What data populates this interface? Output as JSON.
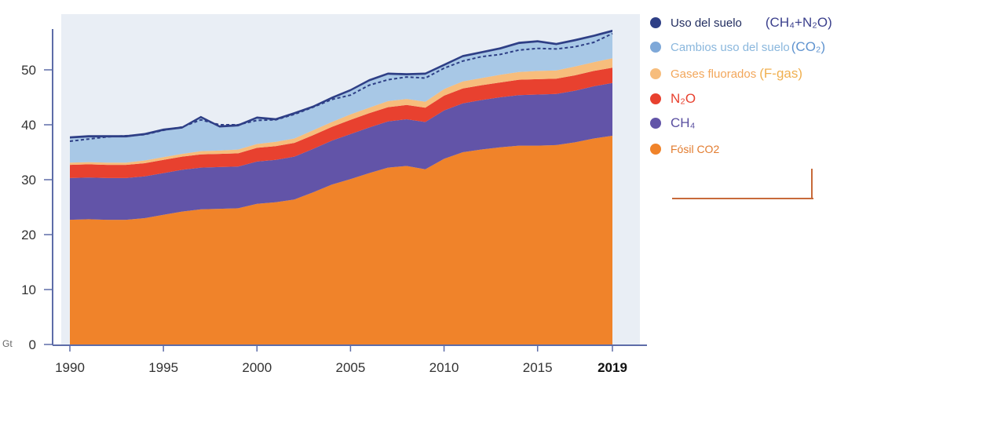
{
  "chart_data": {
    "type": "area",
    "stacked": true,
    "unit_label": "Gt",
    "x": [
      1990,
      1991,
      1992,
      1993,
      1994,
      1995,
      1996,
      1997,
      1998,
      1999,
      2000,
      2001,
      2002,
      2003,
      2004,
      2005,
      2006,
      2007,
      2008,
      2009,
      2010,
      2011,
      2012,
      2013,
      2014,
      2015,
      2016,
      2017,
      2018,
      2019
    ],
    "x_ticks": [
      "1990",
      "1995",
      "2000",
      "2005",
      "2010",
      "2015",
      "2019"
    ],
    "x_ticks_bold": [
      "2019"
    ],
    "y_ticks": [
      "0",
      "10",
      "20",
      "30",
      "40",
      "50"
    ],
    "xlim": [
      1990,
      2019
    ],
    "ylim": [
      0,
      58
    ],
    "grid": false,
    "legend_position": "right",
    "series": [
      {
        "name": "Fósil CO2",
        "color": "#f0832a",
        "values": [
          22.7,
          22.8,
          22.7,
          22.7,
          23.0,
          23.6,
          24.2,
          24.6,
          24.7,
          24.8,
          25.6,
          25.9,
          26.4,
          27.7,
          29.1,
          30.1,
          31.2,
          32.2,
          32.5,
          31.9,
          33.8,
          35.0,
          35.5,
          35.9,
          36.2,
          36.2,
          36.3,
          36.8,
          37.5,
          38.0
        ]
      },
      {
        "name": "CH₄",
        "color": "#6254a8",
        "values": [
          7.6,
          7.6,
          7.6,
          7.6,
          7.6,
          7.6,
          7.6,
          7.6,
          7.6,
          7.6,
          7.7,
          7.7,
          7.8,
          7.9,
          8.0,
          8.2,
          8.3,
          8.4,
          8.5,
          8.6,
          8.8,
          8.9,
          9.0,
          9.1,
          9.2,
          9.3,
          9.3,
          9.4,
          9.5,
          9.6
        ]
      },
      {
        "name": "N₂O",
        "color": "#e8412f",
        "values": [
          2.4,
          2.4,
          2.4,
          2.4,
          2.4,
          2.4,
          2.4,
          2.4,
          2.4,
          2.4,
          2.5,
          2.5,
          2.5,
          2.5,
          2.5,
          2.6,
          2.6,
          2.6,
          2.6,
          2.6,
          2.7,
          2.7,
          2.7,
          2.7,
          2.8,
          2.8,
          2.8,
          2.8,
          2.8,
          2.8
        ]
      },
      {
        "name": "Gases fluorados (F-gas)",
        "color": "#f7bd7c",
        "values": [
          0.4,
          0.4,
          0.4,
          0.4,
          0.5,
          0.5,
          0.5,
          0.6,
          0.6,
          0.7,
          0.7,
          0.8,
          0.8,
          0.9,
          0.9,
          1.0,
          1.0,
          1.1,
          1.1,
          1.1,
          1.2,
          1.3,
          1.3,
          1.4,
          1.4,
          1.5,
          1.5,
          1.6,
          1.6,
          1.7
        ]
      },
      {
        "name": "Cambios uso del suelo (CO₂)",
        "color": "#a8c8e6",
        "values": [
          4.4,
          4.5,
          4.6,
          4.6,
          4.6,
          4.8,
          4.6,
          6.0,
          4.2,
          4.2,
          4.6,
          3.9,
          4.4,
          4.1,
          4.2,
          4.2,
          4.8,
          4.8,
          4.3,
          4.9,
          4.2,
          4.4,
          4.5,
          4.6,
          5.1,
          5.2,
          4.6,
          4.6,
          4.6,
          4.8
        ]
      },
      {
        "name": "Uso del suelo (CH₄+N₂O)",
        "color": "#2e3f86",
        "values": [
          0.4,
          0.4,
          0.4,
          0.4,
          0.4,
          0.4,
          0.4,
          0.4,
          0.4,
          0.4,
          0.4,
          0.4,
          0.4,
          0.4,
          0.4,
          0.4,
          0.4,
          0.4,
          0.4,
          0.4,
          0.4,
          0.4,
          0.4,
          0.4,
          0.4,
          0.4,
          0.4,
          0.4,
          0.4,
          0.4
        ]
      }
    ],
    "dashed_reference_line": {
      "values": [
        37.0,
        37.4,
        37.8,
        38.0,
        38.2,
        39.0,
        39.6,
        40.9,
        40.0,
        40.0,
        40.8,
        40.9,
        41.9,
        43.2,
        44.6,
        45.4,
        47.2,
        48.2,
        48.7,
        48.5,
        50.3,
        51.6,
        52.4,
        52.8,
        53.6,
        53.9,
        53.8,
        54.2,
        55.0,
        56.6
      ]
    },
    "colors": {
      "plot_background": "#e9eef5",
      "dashed_line": "#2e3f86",
      "axis": "#5d6ca8",
      "decoration_line": "#c76a3a"
    }
  },
  "legend": [
    {
      "dot_color": "#2e3f86",
      "label": "Uso del suelo",
      "label_color": "#1f2b5e",
      "formula": "(CH₄+N₂O)",
      "formula_color": "#3a3f8c"
    },
    {
      "dot_color": "#7ea8d8",
      "label": "Cambios uso del suelo",
      "label_color": "#8ab7dd",
      "formula": "(CO₂)",
      "formula_color": "#5f93cf"
    },
    {
      "dot_color": "#f7bd7c",
      "label": "Gases fluorados",
      "label_color": "#f2a65a",
      "formula": "(F-gas)",
      "formula_color": "#f0b050"
    },
    {
      "dot_color": "#e8412f",
      "label": "N₂O",
      "label_color": "#e8412f",
      "formula": "",
      "formula_color": "#e8412f"
    },
    {
      "dot_color": "#6254a8",
      "label": "CH₄",
      "label_color": "#5a4fa0",
      "formula": "",
      "formula_color": "#5a4fa0"
    },
    {
      "dot_color": "#f0832a",
      "label": "Fósil CO2",
      "label_color": "#e27b2e",
      "formula": "",
      "formula_color": "#e27b2e"
    }
  ]
}
